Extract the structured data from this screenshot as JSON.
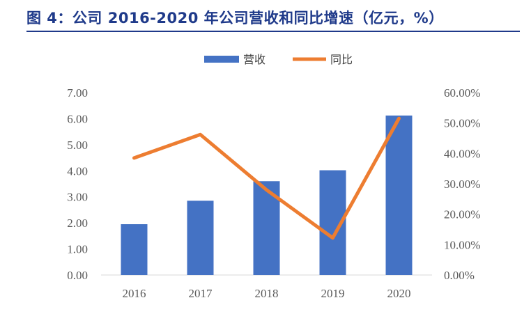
{
  "figure": {
    "title": "图 4：公司 2016-2020 年公司营收和同比增速（亿元，%）"
  },
  "colors": {
    "title": "#1f3a8a",
    "bar": "#4472c4",
    "line": "#ed7d31",
    "axis_text": "#595959"
  },
  "chart_data": {
    "type": "bar",
    "categories": [
      "2016",
      "2017",
      "2018",
      "2019",
      "2020"
    ],
    "series": [
      {
        "name": "营收",
        "type": "bar",
        "axis": "left",
        "values": [
          1.95,
          2.85,
          3.6,
          4.02,
          6.12
        ]
      },
      {
        "name": "同比",
        "type": "line",
        "axis": "right",
        "values": [
          38.5,
          46.2,
          28.0,
          12.2,
          51.5
        ]
      }
    ],
    "y_left": {
      "range": [
        0,
        7
      ],
      "ticks": [
        "0.00",
        "1.00",
        "2.00",
        "3.00",
        "4.00",
        "5.00",
        "6.00",
        "7.00"
      ]
    },
    "y_right": {
      "range": [
        0,
        60
      ],
      "ticks": [
        "0.00%",
        "10.00%",
        "20.00%",
        "30.00%",
        "40.00%",
        "50.00%",
        "60.00%"
      ]
    },
    "legend": {
      "position": "top-center"
    },
    "grid": false
  }
}
